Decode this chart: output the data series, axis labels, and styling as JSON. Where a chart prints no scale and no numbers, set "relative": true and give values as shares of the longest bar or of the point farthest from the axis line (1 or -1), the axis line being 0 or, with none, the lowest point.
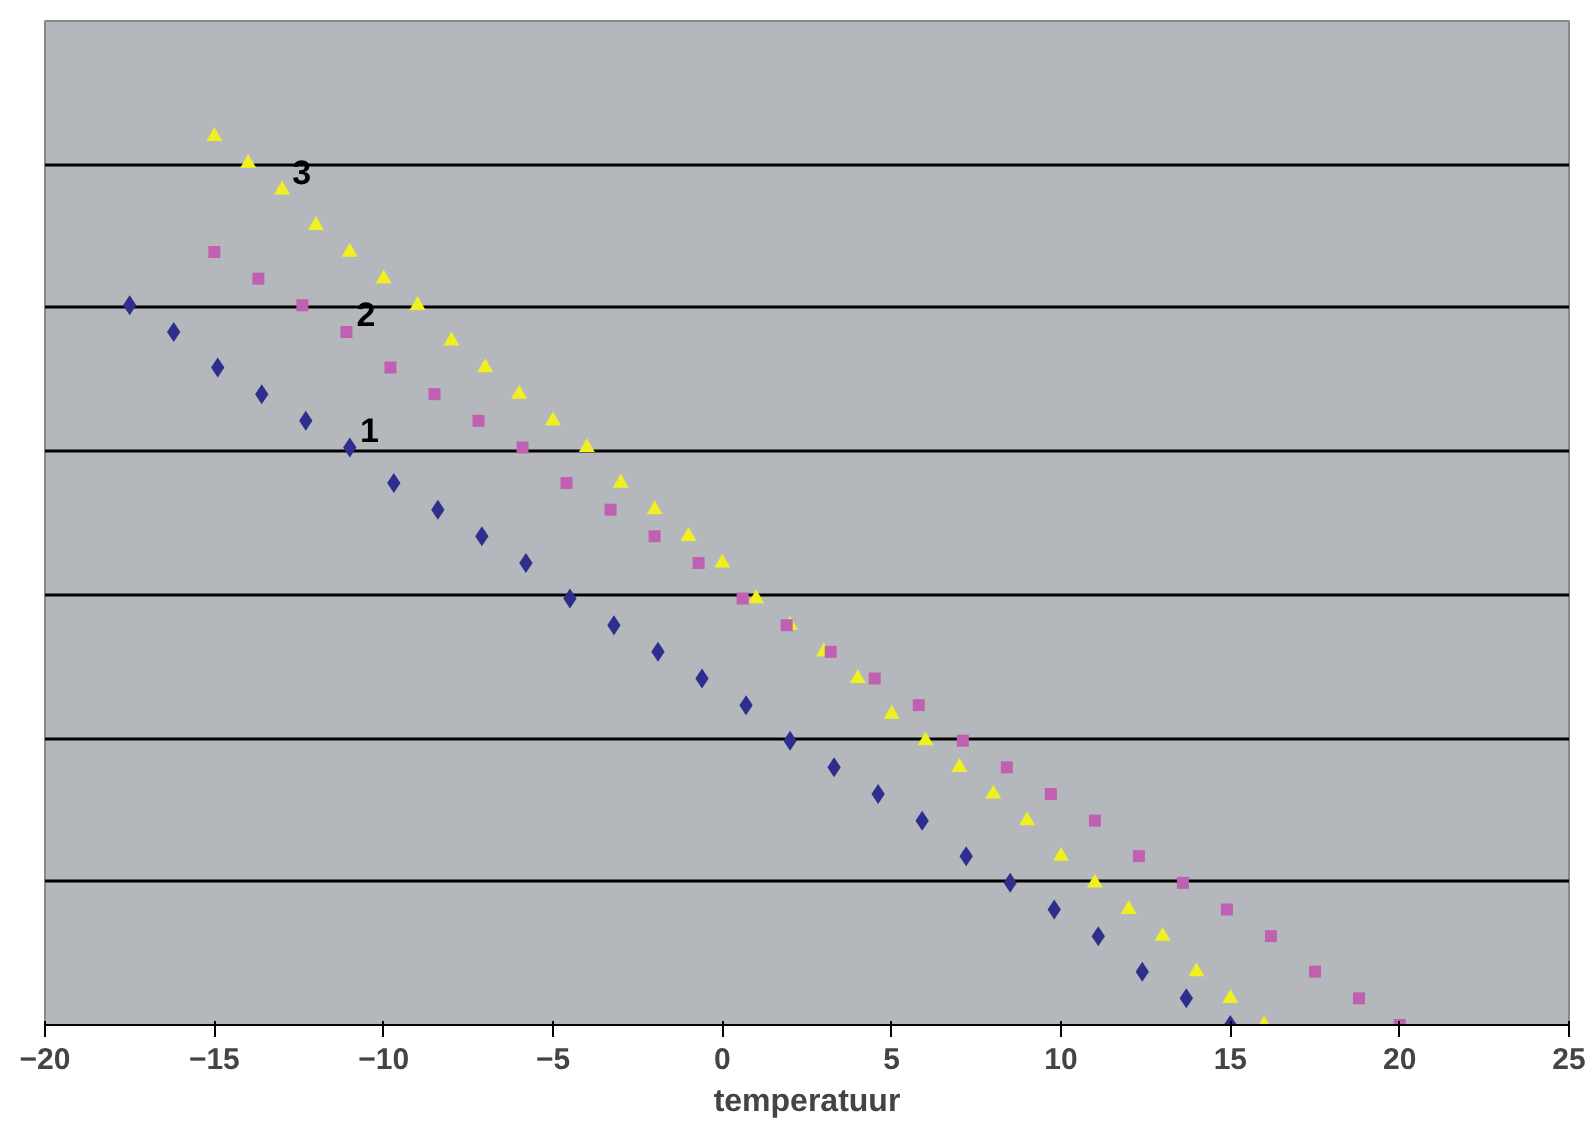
{
  "chart_data": {
    "type": "scatter",
    "xlabel": "temperatuur",
    "relative": true,
    "grid": "y",
    "legend": false,
    "xlim": [
      -20,
      25
    ],
    "xticks": [
      -20,
      -15,
      -10,
      -5,
      0,
      5,
      10,
      15,
      20,
      25
    ],
    "series": [
      {
        "name": "1",
        "color": "#2e2e8c",
        "marker": "diamond",
        "x": [
          -17.5,
          -16.2,
          -14.9,
          -13.6,
          -12.3,
          -11.0,
          -9.7,
          -8.4,
          -7.1,
          -5.8,
          -4.5,
          -3.2,
          -1.9,
          -0.6,
          0.7,
          2.0,
          3.3,
          4.6,
          5.9,
          7.2,
          8.5,
          9.8,
          11.1,
          12.4,
          13.7,
          15.0
        ],
        "values": [
          0.81,
          0.78,
          0.74,
          0.71,
          0.68,
          0.65,
          0.61,
          0.58,
          0.55,
          0.52,
          0.48,
          0.45,
          0.42,
          0.39,
          0.36,
          0.32,
          0.29,
          0.26,
          0.23,
          0.19,
          0.16,
          0.13,
          0.1,
          0.06,
          0.03,
          0.0
        ]
      },
      {
        "name": "2",
        "color": "#c060b0",
        "marker": "square",
        "x": [
          -15.0,
          -13.7,
          -12.4,
          -11.1,
          -9.8,
          -8.5,
          -7.2,
          -5.9,
          -4.6,
          -3.3,
          -2.0,
          -0.7,
          0.6,
          1.9,
          3.2,
          4.5,
          5.8,
          7.1,
          8.4,
          9.7,
          11.0,
          12.3,
          13.6,
          14.9,
          16.2,
          17.5,
          18.8,
          20.0
        ],
        "values": [
          0.87,
          0.84,
          0.81,
          0.78,
          0.74,
          0.71,
          0.68,
          0.65,
          0.61,
          0.58,
          0.55,
          0.52,
          0.48,
          0.45,
          0.42,
          0.39,
          0.36,
          0.32,
          0.29,
          0.26,
          0.23,
          0.19,
          0.16,
          0.13,
          0.1,
          0.06,
          0.03,
          0.0
        ]
      },
      {
        "name": "3",
        "color": "#f0f020",
        "marker": "triangle",
        "x": [
          -15,
          -14,
          -13,
          -12,
          -11,
          -10,
          -9,
          -8,
          -7,
          -6,
          -5,
          -4,
          -3,
          -2,
          -1,
          0,
          1,
          2,
          3,
          4,
          5,
          6,
          7,
          8,
          9,
          10,
          11,
          12,
          13,
          14,
          15,
          16
        ],
        "values": [
          1.0,
          0.97,
          0.94,
          0.9,
          0.87,
          0.84,
          0.81,
          0.77,
          0.74,
          0.71,
          0.68,
          0.65,
          0.61,
          0.58,
          0.55,
          0.52,
          0.48,
          0.45,
          0.42,
          0.39,
          0.35,
          0.32,
          0.29,
          0.26,
          0.23,
          0.19,
          0.16,
          0.13,
          0.1,
          0.06,
          0.03,
          0.0
        ]
      }
    ]
  }
}
